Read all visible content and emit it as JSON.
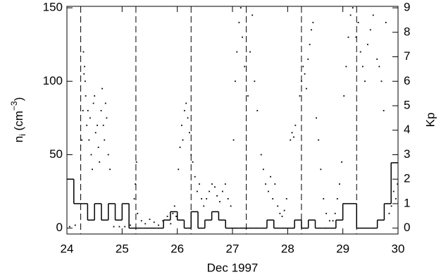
{
  "chart_data": {
    "type": "scatter",
    "xlabel": "Dec 1997",
    "ylabel": {
      "base": "n",
      "sub": "i",
      "unit": " (cm",
      "exp": "−3",
      "close": ")"
    },
    "y2label": "Kp",
    "xlim": [
      24,
      30
    ],
    "xticks": [
      24,
      25,
      26,
      27,
      28,
      29,
      30
    ],
    "ylim": [
      -4,
      151
    ],
    "yticks": [
      0,
      50,
      100,
      150
    ],
    "y2lim": [
      -0.24,
      9.06
    ],
    "y2ticks": [
      0,
      1,
      2,
      3,
      4,
      5,
      6,
      7,
      8,
      9
    ],
    "vlines": [
      24.25,
      25.25,
      26.25,
      27.25,
      28.25,
      29.25
    ],
    "color": "#000000",
    "x": [
      24.05,
      24.15,
      24.27,
      24.29,
      24.31,
      24.32,
      24.33,
      24.34,
      24.3,
      24.36,
      24.38,
      24.4,
      24.42,
      24.44,
      24.46,
      24.48,
      24.5,
      24.52,
      24.55,
      24.57,
      24.59,
      24.62,
      24.64,
      24.66,
      24.68,
      24.7,
      24.72,
      24.75,
      24.78,
      24.85,
      24.95,
      25.05,
      25.15,
      25.22,
      25.24,
      25.26,
      25.28,
      25.35,
      25.42,
      25.5,
      25.58,
      25.66,
      25.74,
      25.82,
      25.88,
      25.92,
      25.95,
      25.98,
      26.02,
      26.05,
      26.08,
      26.1,
      26.13,
      26.16,
      26.19,
      26.22,
      26.25,
      26.28,
      26.32,
      26.36,
      26.4,
      26.44,
      26.48,
      26.53,
      26.58,
      26.63,
      26.68,
      26.72,
      26.77,
      26.82,
      26.87,
      26.92,
      26.97,
      27.02,
      27.05,
      27.08,
      27.12,
      27.15,
      27.18,
      27.22,
      27.28,
      27.32,
      27.36,
      27.4,
      27.45,
      27.52,
      27.56,
      27.6,
      27.65,
      27.69,
      27.73,
      27.77,
      27.82,
      27.86,
      27.9,
      27.94,
      27.98,
      28.05,
      28.08,
      28.11,
      28.14,
      28.22,
      28.25,
      28.28,
      28.31,
      28.34,
      28.37,
      28.4,
      28.43,
      28.46,
      28.52,
      28.56,
      28.6,
      28.65,
      28.7,
      28.76,
      28.82,
      28.86,
      28.9,
      28.94,
      28.98,
      29.02,
      29.06,
      29.1,
      29.14,
      29.18,
      29.24,
      29.28,
      29.32,
      29.36,
      29.4,
      29.45,
      29.5,
      29.55,
      29.62,
      29.66,
      29.7,
      29.74,
      29.78,
      29.84,
      29.88,
      29.92,
      29.96,
      29.99
    ],
    "values": [
      1,
      2,
      60,
      80,
      105,
      110,
      100,
      90,
      120,
      70,
      80,
      60,
      75,
      50,
      40,
      85,
      90,
      65,
      70,
      55,
      45,
      80,
      95,
      70,
      60,
      85,
      75,
      50,
      40,
      1,
      1,
      1,
      2,
      20,
      30,
      45,
      10,
      5,
      3,
      6,
      4,
      2,
      5,
      8,
      3,
      10,
      15,
      8,
      40,
      55,
      70,
      60,
      80,
      85,
      75,
      65,
      50,
      45,
      35,
      25,
      30,
      20,
      15,
      20,
      25,
      30,
      28,
      22,
      18,
      25,
      30,
      20,
      15,
      60,
      100,
      120,
      140,
      150,
      130,
      110,
      90,
      120,
      145,
      100,
      80,
      50,
      40,
      30,
      25,
      35,
      20,
      30,
      15,
      10,
      8,
      12,
      20,
      60,
      65,
      62,
      70,
      90,
      100,
      110,
      105,
      95,
      115,
      125,
      135,
      140,
      75,
      60,
      40,
      20,
      10,
      5,
      5,
      10,
      20,
      30,
      45,
      90,
      110,
      130,
      145,
      150,
      130,
      140,
      120,
      110,
      100,
      125,
      135,
      145,
      115,
      110,
      100,
      80,
      140,
      10,
      15,
      25,
      20,
      30
    ],
    "kp": {
      "x": [
        24,
        24.125,
        24.25,
        24.375,
        24.5,
        24.625,
        24.75,
        24.875,
        25,
        25.125,
        25.25,
        25.375,
        25.5,
        25.625,
        25.75,
        25.875,
        26,
        26.125,
        26.25,
        26.375,
        26.5,
        26.625,
        26.75,
        26.875,
        27,
        27.125,
        27.25,
        27.375,
        27.5,
        27.625,
        27.75,
        27.875,
        28,
        28.125,
        28.25,
        28.375,
        28.5,
        28.625,
        28.75,
        28.875,
        29,
        29.125,
        29.25,
        29.375,
        29.5,
        29.625,
        29.75,
        29.875
      ],
      "values": [
        2,
        1,
        1,
        0.33,
        1,
        0.33,
        1,
        0.33,
        1,
        0,
        0,
        0,
        0,
        0,
        0.33,
        0.67,
        0.33,
        0,
        0.67,
        0,
        0.33,
        0.67,
        0.33,
        0,
        0,
        0,
        0,
        0,
        0,
        0.33,
        0,
        0,
        0,
        0.33,
        0,
        0.33,
        0,
        0,
        0,
        0.33,
        1,
        1,
        0,
        0,
        0,
        0.33,
        1,
        2.67
      ],
      "color": "#000000"
    }
  }
}
